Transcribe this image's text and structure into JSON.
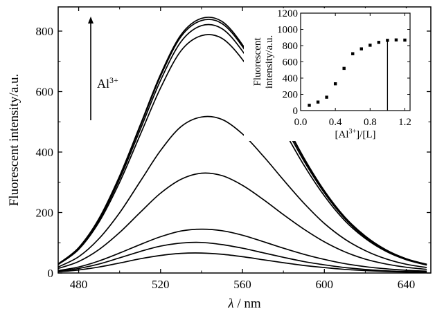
{
  "chart_data": [
    {
      "type": "line",
      "title": "",
      "xlabel": "λ / nm",
      "xlabel_italic_part": "λ",
      "xlabel_rest": " / nm",
      "ylabel": "Fluorescent intensity/a.u.",
      "xlim": [
        470,
        652
      ],
      "ylim": [
        0,
        880
      ],
      "x_ticks": [
        480,
        520,
        560,
        600,
        640
      ],
      "y_ticks": [
        0,
        200,
        400,
        600,
        800
      ],
      "grid": false,
      "legend": "none",
      "x": [
        470,
        480,
        490,
        500,
        510,
        520,
        530,
        540,
        550,
        560,
        570,
        580,
        590,
        600,
        610,
        620,
        630,
        640,
        650
      ],
      "series": [
        {
          "values": [
            4,
            10,
            20,
            33,
            47,
            58,
            65,
            66,
            62,
            54,
            44,
            34,
            25,
            18,
            12,
            8,
            5,
            3,
            2
          ]
        },
        {
          "values": [
            6,
            15,
            30,
            50,
            71,
            89,
            99,
            101,
            94,
            82,
            67,
            52,
            38,
            27,
            18,
            12,
            7,
            5,
            3
          ]
        },
        {
          "values": [
            8,
            20,
            40,
            66,
            94,
            120,
            139,
            145,
            140,
            125,
            104,
            82,
            62,
            45,
            31,
            21,
            14,
            9,
            6
          ]
        },
        {
          "values": [
            15,
            38,
            78,
            134,
            200,
            264,
            310,
            330,
            322,
            290,
            244,
            193,
            145,
            103,
            70,
            46,
            30,
            19,
            12
          ]
        },
        {
          "values": [
            20,
            54,
            114,
            199,
            302,
            405,
            484,
            516,
            508,
            460,
            388,
            308,
            231,
            164,
            112,
            74,
            47,
            29,
            18
          ]
        },
        {
          "values": [
            28,
            78,
            169,
            300,
            456,
            612,
            735,
            785,
            776,
            706,
            598,
            475,
            357,
            255,
            173,
            114,
            72,
            44,
            26
          ]
        },
        {
          "values": [
            29,
            81,
            175,
            311,
            473,
            637,
            765,
            818,
            808,
            734,
            622,
            494,
            371,
            265,
            180,
            118,
            75,
            46,
            28
          ]
        },
        {
          "values": [
            30,
            83,
            179,
            318,
            484,
            651,
            782,
            835,
            825,
            749,
            634,
            504,
            378,
            269,
            183,
            120,
            76,
            47,
            28
          ]
        },
        {
          "values": [
            30,
            84,
            181,
            321,
            488,
            657,
            788,
            842,
            832,
            755,
            640,
            508,
            381,
            272,
            185,
            122,
            77,
            47,
            29
          ]
        }
      ],
      "annotations": [
        {
          "text_main": "Al",
          "text_sup": "3+",
          "kind": "arrow-up"
        }
      ]
    },
    {
      "type": "scatter",
      "title": "",
      "xlabel_parts": [
        "[Al",
        "3+",
        "]/[L]"
      ],
      "ylabel_lines": [
        "Fluorescent",
        "intensity/a.u."
      ],
      "xlim": [
        0,
        1.26
      ],
      "ylim": [
        0,
        1200
      ],
      "x_ticks": [
        "0.0",
        "0.4",
        "0.8",
        "1.2"
      ],
      "x_tick_values": [
        0.0,
        0.4,
        0.8,
        1.2
      ],
      "y_ticks": [
        0,
        200,
        400,
        600,
        800,
        1000,
        1200
      ],
      "grid": false,
      "legend": "none",
      "points": [
        {
          "x": 0.1,
          "y": 65
        },
        {
          "x": 0.2,
          "y": 105
        },
        {
          "x": 0.3,
          "y": 165
        },
        {
          "x": 0.4,
          "y": 330
        },
        {
          "x": 0.5,
          "y": 520
        },
        {
          "x": 0.6,
          "y": 700
        },
        {
          "x": 0.7,
          "y": 760
        },
        {
          "x": 0.8,
          "y": 805
        },
        {
          "x": 0.9,
          "y": 840
        },
        {
          "x": 1.0,
          "y": 865
        },
        {
          "x": 1.1,
          "y": 870
        },
        {
          "x": 1.2,
          "y": 868
        }
      ],
      "reference_line": {
        "x": 1.0,
        "y_top": 865
      }
    }
  ]
}
